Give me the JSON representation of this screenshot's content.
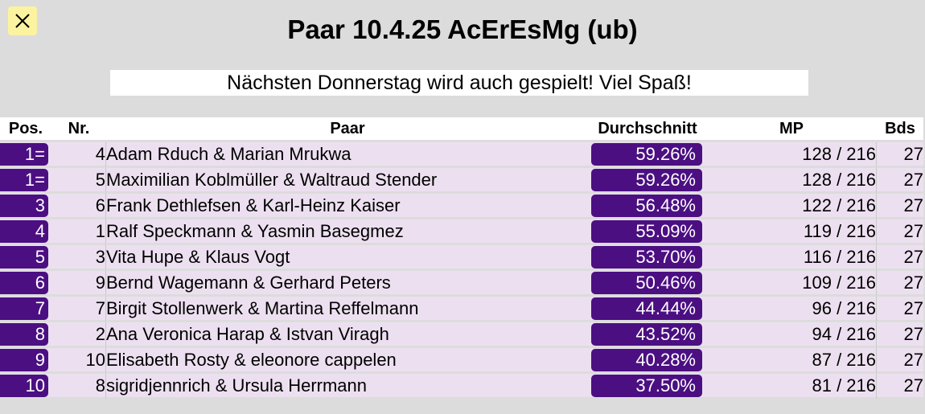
{
  "title": "Paar 10.4.25 AcErEsMg (ub)",
  "banner": "Nächsten Donnerstag wird auch gespielt! Viel Spaß!",
  "close_icon": "close-icon",
  "colors": {
    "accent": "#4b0f82",
    "row_bg": "#ece0f0",
    "close_bg": "#fbf3a0",
    "page_bg": "#dcdcdc"
  },
  "table": {
    "headers": {
      "pos": "Pos.",
      "nr": "Nr.",
      "paar": "Paar",
      "avg": "Durchschnitt",
      "mp": "MP",
      "bds": "Bds"
    },
    "rows": [
      {
        "pos": "1=",
        "nr": "4",
        "paar": "Adam Rduch & Marian Mrukwa",
        "avg": "59.26%",
        "mp": "128 / 216",
        "bds": "27"
      },
      {
        "pos": "1=",
        "nr": "5",
        "paar": "Maximilian Koblmüller & Waltraud Stender",
        "avg": "59.26%",
        "mp": "128 / 216",
        "bds": "27"
      },
      {
        "pos": "3",
        "nr": "6",
        "paar": "Frank Dethlefsen & Karl-Heinz Kaiser",
        "avg": "56.48%",
        "mp": "122 / 216",
        "bds": "27"
      },
      {
        "pos": "4",
        "nr": "1",
        "paar": "Ralf Speckmann & Yasmin Basegmez",
        "avg": "55.09%",
        "mp": "119 / 216",
        "bds": "27"
      },
      {
        "pos": "5",
        "nr": "3",
        "paar": "Vita Hupe & Klaus Vogt",
        "avg": "53.70%",
        "mp": "116 / 216",
        "bds": "27"
      },
      {
        "pos": "6",
        "nr": "9",
        "paar": "Bernd Wagemann & Gerhard Peters",
        "avg": "50.46%",
        "mp": "109 / 216",
        "bds": "27"
      },
      {
        "pos": "7",
        "nr": "7",
        "paar": "Birgit Stollenwerk & Martina Reffelmann",
        "avg": "44.44%",
        "mp": "96 / 216",
        "bds": "27"
      },
      {
        "pos": "8",
        "nr": "2",
        "paar": "Ana Veronica Harap & Istvan Viragh",
        "avg": "43.52%",
        "mp": "94 / 216",
        "bds": "27"
      },
      {
        "pos": "9",
        "nr": "10",
        "paar": "Elisabeth Rosty & eleonore cappelen",
        "avg": "40.28%",
        "mp": "87 / 216",
        "bds": "27"
      },
      {
        "pos": "10",
        "nr": "8",
        "paar": "sigridjennrich & Ursula Herrmann",
        "avg": "37.50%",
        "mp": "81 / 216",
        "bds": "27"
      }
    ]
  }
}
